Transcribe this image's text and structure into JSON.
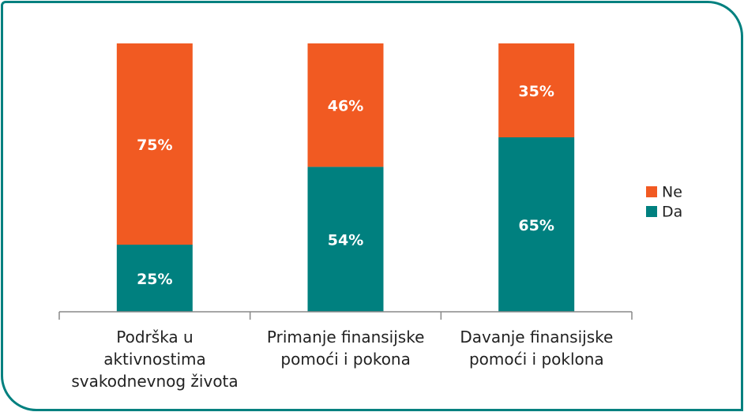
{
  "chart_data": {
    "type": "stacked_bar",
    "categories": [
      "Podrška u\naktivnostima\nsvakodnevnog života",
      "Primanje finansijske\npomoći i pokona",
      "Davanje finansijske\npomoći i poklona"
    ],
    "series": [
      {
        "name": "Da",
        "color": "#00807f",
        "values": [
          25,
          54,
          65
        ],
        "value_labels": [
          "25%",
          "54%",
          "65%"
        ]
      },
      {
        "name": "Ne",
        "color": "#f15a22",
        "values": [
          75,
          46,
          35
        ],
        "value_labels": [
          "75%",
          "46%",
          "35%"
        ]
      }
    ],
    "ylim": [
      0,
      100
    ],
    "legend": "right"
  }
}
